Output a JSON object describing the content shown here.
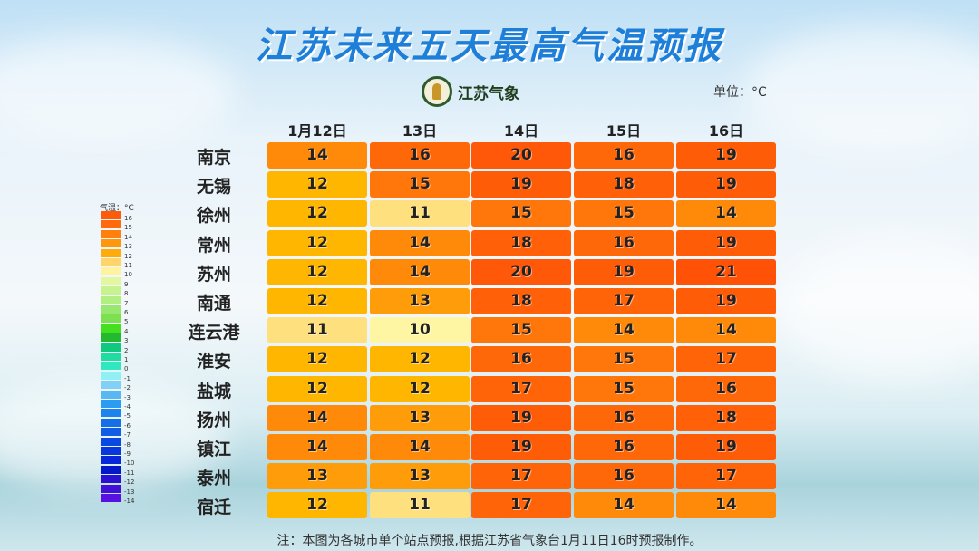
{
  "title": "江苏未来五天最高气温预报",
  "logo_text": "江苏气象",
  "unit": "单位：°C",
  "columns": [
    "1月12日",
    "13日",
    "14日",
    "15日",
    "16日"
  ],
  "rows": [
    {
      "city": "南京",
      "values": [
        14,
        16,
        20,
        16,
        19
      ]
    },
    {
      "city": "无锡",
      "values": [
        12,
        15,
        19,
        18,
        19
      ]
    },
    {
      "city": "徐州",
      "values": [
        12,
        11,
        15,
        15,
        14
      ]
    },
    {
      "city": "常州",
      "values": [
        12,
        14,
        18,
        16,
        19
      ]
    },
    {
      "city": "苏州",
      "values": [
        12,
        14,
        20,
        19,
        21
      ]
    },
    {
      "city": "南通",
      "values": [
        12,
        13,
        18,
        17,
        19
      ]
    },
    {
      "city": "连云港",
      "values": [
        11,
        10,
        15,
        14,
        14
      ]
    },
    {
      "city": "淮安",
      "values": [
        12,
        12,
        16,
        15,
        17
      ]
    },
    {
      "city": "盐城",
      "values": [
        12,
        12,
        17,
        15,
        16
      ]
    },
    {
      "city": "扬州",
      "values": [
        14,
        13,
        19,
        16,
        18
      ]
    },
    {
      "city": "镇江",
      "values": [
        14,
        14,
        19,
        16,
        19
      ]
    },
    {
      "city": "泰州",
      "values": [
        13,
        13,
        17,
        16,
        17
      ]
    },
    {
      "city": "宿迁",
      "values": [
        12,
        11,
        17,
        14,
        14
      ]
    }
  ],
  "legend": {
    "title": "气温：°C",
    "labels": [
      "16",
      "15",
      "14",
      "13",
      "12",
      "11",
      "10",
      "9",
      "8",
      "7",
      "6",
      "5",
      "4",
      "3",
      "2",
      "1",
      "0",
      "-1",
      "-2",
      "-3",
      "-4",
      "-5",
      "-6",
      "-7",
      "-8",
      "-9",
      "-10",
      "-11",
      "-12",
      "-13",
      "-14"
    ],
    "colors": [
      "#ff5a08",
      "#ff6a0a",
      "#ff800c",
      "#ff960c",
      "#ffac0a",
      "#ffd46a",
      "#fff3a0",
      "#e2f7a0",
      "#c6f390",
      "#b0ef80",
      "#98e870",
      "#7ce050",
      "#44e020",
      "#22b830",
      "#10c880",
      "#20dca0",
      "#30e8c0",
      "#90f0f4",
      "#80d0f8",
      "#58b8f4",
      "#2c9cf0",
      "#1c84ec",
      "#1470e8",
      "#105ee4",
      "#0a4ae0",
      "#0838dc",
      "#0628d8",
      "#0418c8",
      "#2a10d0",
      "#4010d8",
      "#5810e0"
    ]
  },
  "cell_colors": {
    "10": "#fff6a4",
    "11": "#ffe07e",
    "12": "#ffb600",
    "13": "#ff9c0a",
    "14": "#ff8a0a",
    "15": "#ff760a",
    "16": "#ff6808",
    "17": "#ff6408",
    "18": "#ff6008",
    "19": "#ff5c08",
    "20": "#ff5808",
    "21": "#ff5206"
  },
  "footer": "注：本图为各城市单个站点预报,根据江苏省气象台1月11日16时预报制作。"
}
